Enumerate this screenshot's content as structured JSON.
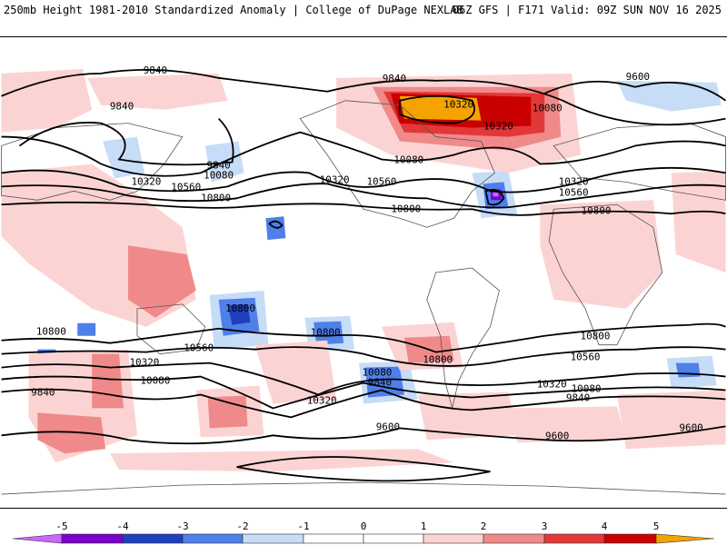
{
  "header": {
    "left": "250mb Height 1981-2010 Standardized Anomaly | College of DuPage NEXLAB",
    "right": "06Z GFS | F171 Valid: 09Z SUN NOV 16 2025"
  },
  "colors": {
    "neg5": "#cc66ff",
    "neg4": "#7a00cc",
    "neg3": "#1f3fbf",
    "neg2": "#4f7fe8",
    "neg1": "#c6dcf7",
    "zero": "#ffffff",
    "pos1": "#fcd3d3",
    "pos2": "#f08a8a",
    "pos3": "#e23838",
    "pos4": "#c80000",
    "pos5": "#f4a300",
    "contour": "#000000",
    "coast": "#555555"
  },
  "colorbar": {
    "ticks": [
      "-5",
      "-4",
      "-3",
      "-2",
      "-1",
      "0",
      "1",
      "2",
      "3",
      "4",
      "5"
    ]
  },
  "contour_labels": [
    "9840",
    "9840",
    "9840",
    "9600",
    "10320",
    "10080",
    "10320",
    "9840",
    "10080",
    "10320",
    "10560",
    "10800",
    "10320",
    "10560",
    "10080",
    "10800",
    "10320",
    "10560",
    "10800",
    "10800",
    "10800",
    "10800",
    "10560",
    "10320",
    "10080",
    "9840",
    "10560",
    "10080",
    "9840",
    "10320",
    "10800",
    "10560",
    "10320",
    "10080",
    "9840",
    "10800",
    "9600",
    "9600",
    "9600"
  ]
}
